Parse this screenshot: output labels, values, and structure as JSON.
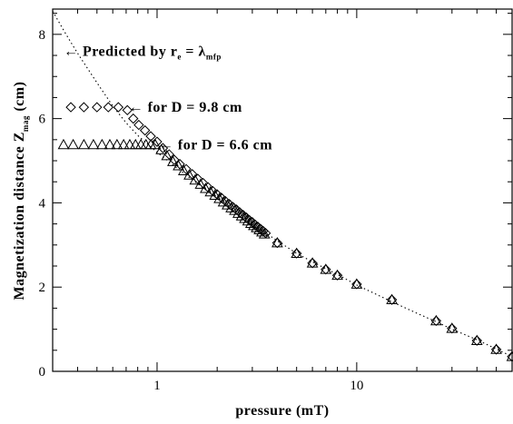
{
  "chart_data": {
    "type": "scatter",
    "xlabel": "pressure (mT)",
    "ylabel_main": "Magnetization distance Z",
    "ylabel_sub": "mag",
    "ylabel_unit": " (cm)",
    "x_scale": "log",
    "xlim": [
      0.3,
      60
    ],
    "ylim": [
      0,
      8.6
    ],
    "x_ticks": [
      {
        "value": 1,
        "label": "1"
      },
      {
        "value": 10,
        "label": "10"
      }
    ],
    "y_ticks": [
      {
        "value": 0,
        "label": "0"
      },
      {
        "value": 2,
        "label": "2"
      },
      {
        "value": 4,
        "label": "4"
      },
      {
        "value": 6,
        "label": "6"
      },
      {
        "value": 8,
        "label": "8"
      }
    ],
    "grid": false,
    "annotations": [
      {
        "arrow": "←",
        "prefix": " Predicted by r",
        "sub1": "e",
        "mid": " = λ",
        "sub2": "mfp",
        "x": 0.34,
        "y": 7.6
      },
      {
        "arrow": "←",
        "text": " for D = 9.8 cm",
        "x": 0.72,
        "y": 6.27
      },
      {
        "arrow": "←",
        "text": " for D = 6.6 cm",
        "x": 1.02,
        "y": 5.38
      }
    ],
    "series": [
      {
        "marker": "diamond",
        "x": [
          0.37,
          0.43,
          0.5,
          0.57,
          0.64,
          0.71,
          0.76,
          0.81,
          0.87,
          0.93,
          1.0,
          1.07,
          1.15,
          1.22,
          1.3,
          1.4,
          1.5,
          1.6,
          1.7,
          1.8,
          1.9,
          2.0,
          2.1,
          2.2,
          2.3,
          2.4,
          2.5,
          2.6,
          2.7,
          2.8,
          2.9,
          3.0,
          3.1,
          3.2,
          3.3,
          3.4,
          3.5,
          4.0,
          5.0,
          6.0,
          7.0,
          8.0,
          10,
          15,
          25,
          30,
          40,
          50,
          60
        ],
        "y": [
          6.27,
          6.27,
          6.27,
          6.27,
          6.27,
          6.2,
          6.0,
          5.85,
          5.72,
          5.58,
          5.45,
          5.3,
          5.15,
          5.02,
          4.92,
          4.8,
          4.68,
          4.57,
          4.47,
          4.37,
          4.28,
          4.2,
          4.12,
          4.04,
          3.97,
          3.9,
          3.84,
          3.77,
          3.71,
          3.65,
          3.59,
          3.54,
          3.48,
          3.43,
          3.38,
          3.33,
          3.28,
          3.05,
          2.8,
          2.57,
          2.42,
          2.28,
          2.07,
          1.7,
          1.2,
          1.02,
          0.73,
          0.52,
          0.35
        ]
      },
      {
        "marker": "triangle",
        "x": [
          0.34,
          0.38,
          0.43,
          0.48,
          0.53,
          0.58,
          0.63,
          0.68,
          0.73,
          0.78,
          0.83,
          0.88,
          0.93,
          0.98,
          1.05,
          1.12,
          1.2,
          1.28,
          1.36,
          1.45,
          1.55,
          1.65,
          1.75,
          1.85,
          1.95,
          2.05,
          2.15,
          2.25,
          2.35,
          2.45,
          2.55,
          2.65,
          2.75,
          2.85,
          2.95,
          3.05,
          3.15,
          3.25,
          3.35,
          3.45,
          4.0,
          5.0,
          6.0,
          7.0,
          8.0,
          10,
          15,
          25,
          30,
          40,
          50,
          60
        ],
        "y": [
          5.38,
          5.38,
          5.38,
          5.38,
          5.38,
          5.38,
          5.38,
          5.38,
          5.38,
          5.38,
          5.38,
          5.38,
          5.38,
          5.38,
          5.26,
          5.12,
          4.98,
          4.88,
          4.76,
          4.66,
          4.54,
          4.44,
          4.34,
          4.26,
          4.18,
          4.1,
          4.02,
          3.95,
          3.88,
          3.82,
          3.75,
          3.69,
          3.63,
          3.57,
          3.51,
          3.46,
          3.41,
          3.36,
          3.31,
          3.26,
          3.05,
          2.8,
          2.57,
          2.42,
          2.28,
          2.07,
          1.7,
          1.2,
          1.02,
          0.73,
          0.52,
          0.35
        ]
      }
    ],
    "predicted_curve": {
      "style": "dotted",
      "x": [
        0.3,
        0.35,
        0.4,
        0.5,
        0.6,
        0.7,
        0.8,
        1.0,
        1.2,
        1.5,
        2.0,
        2.5,
        3.0,
        4.0,
        5.0,
        6.0,
        8.0,
        10,
        15,
        20,
        25,
        30,
        40,
        50,
        60
      ],
      "y": [
        8.55,
        8.0,
        7.55,
        6.85,
        6.3,
        5.9,
        5.6,
        5.2,
        4.9,
        4.55,
        4.1,
        3.8,
        3.5,
        3.1,
        2.8,
        2.6,
        2.3,
        2.05,
        1.65,
        1.38,
        1.18,
        1.0,
        0.75,
        0.53,
        0.35
      ]
    }
  }
}
